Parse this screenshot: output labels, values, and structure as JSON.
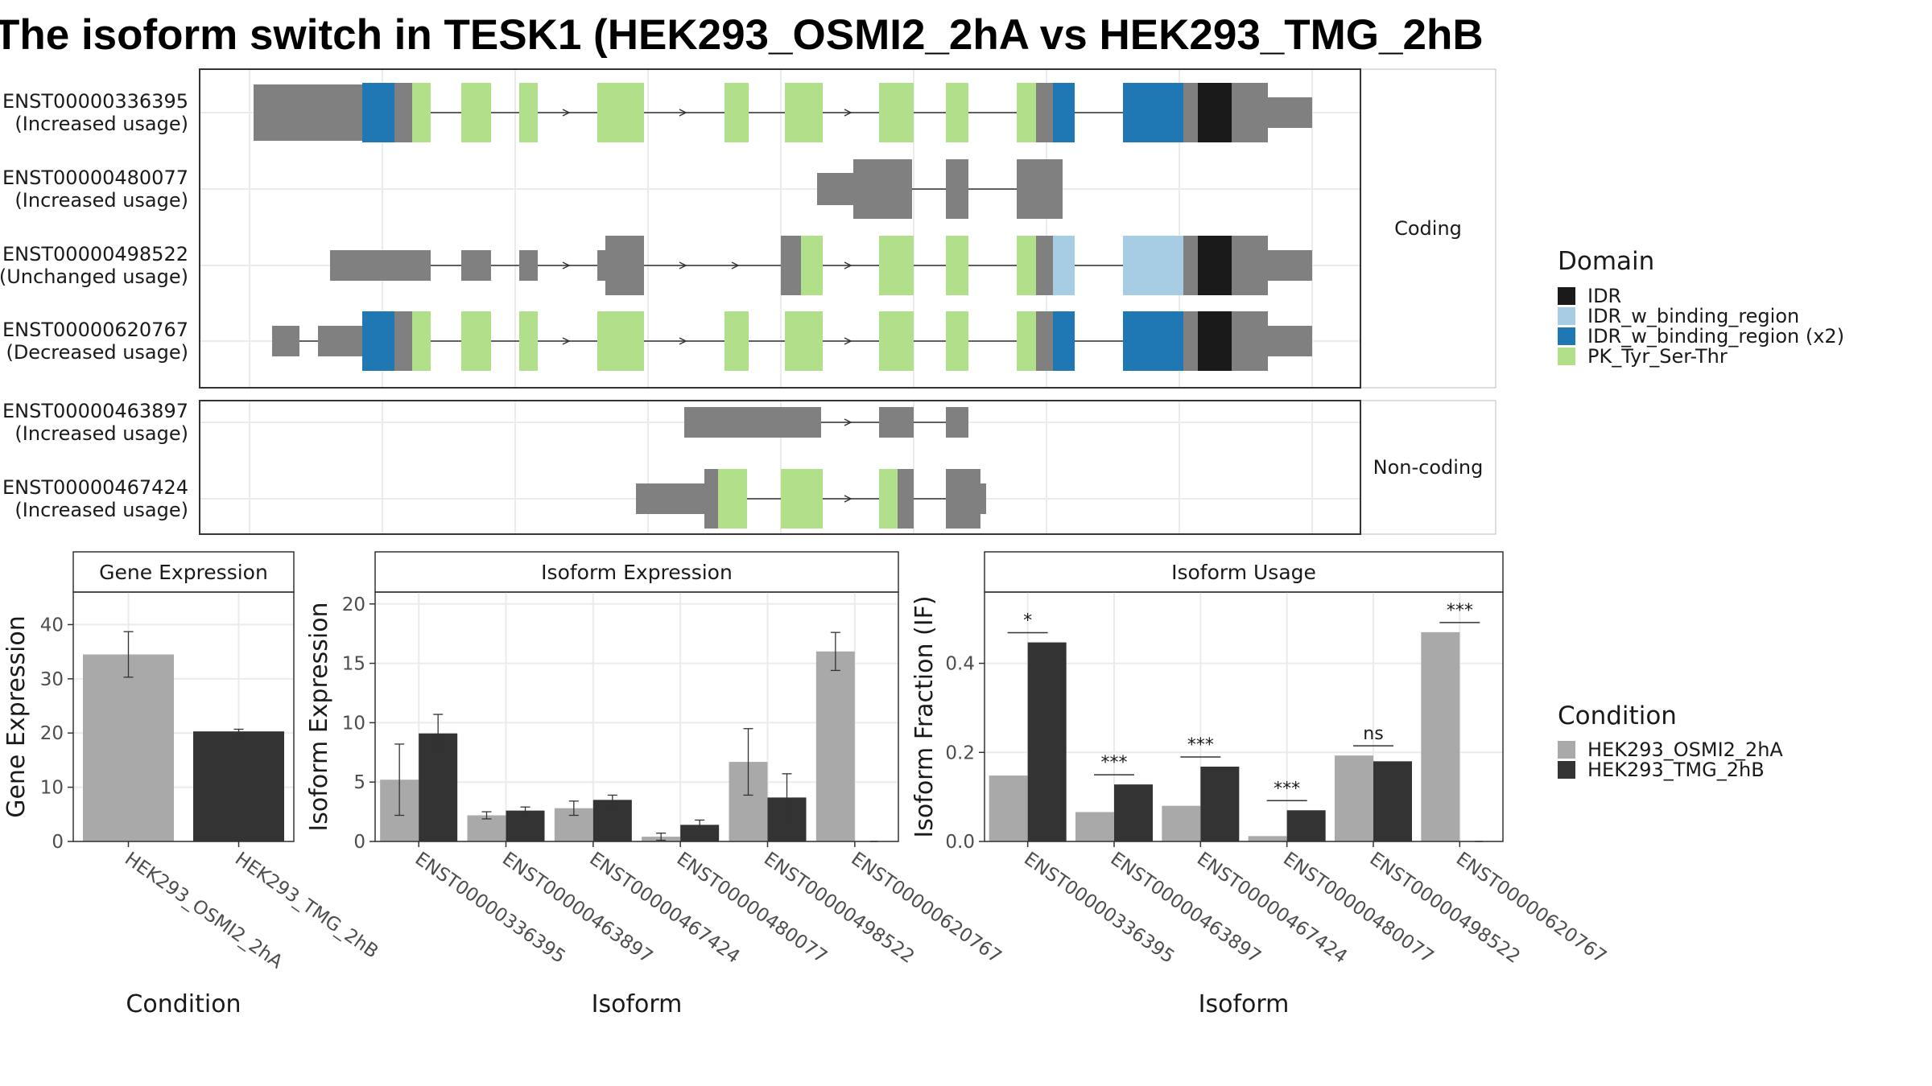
{
  "title": "The isoform switch in TESK1 (HEK293_OSMI2_2hA vs HEK293_TMG_2hB",
  "colors": {
    "gray_exon": "#808080",
    "IDR": "#1a1a1a",
    "IDR_w_binding_region": "#a6cde3",
    "IDR_w_binding_region (x2)": "#1f78b4",
    "PK_Tyr_Ser-Thr": "#b2df8a",
    "cond1": "#a9a9a9",
    "cond2": "#333333"
  },
  "chart_data": [
    {
      "type": "gene-structure",
      "facets": [
        "Coding",
        "Non-coding"
      ],
      "transcripts": [
        {
          "id": "ENST00000336395",
          "usage": "(Increased usage)",
          "facet": "Coding"
        },
        {
          "id": "ENST00000480077",
          "usage": "(Increased usage)",
          "facet": "Coding"
        },
        {
          "id": "ENST00000498522",
          "usage": "(Unchanged usage)",
          "facet": "Coding"
        },
        {
          "id": "ENST00000620767",
          "usage": "(Decreased usage)",
          "facet": "Coding"
        },
        {
          "id": "ENST00000463897",
          "usage": "(Increased usage)",
          "facet": "Non-coding"
        },
        {
          "id": "ENST00000467424",
          "usage": "(Increased usage)",
          "facet": "Non-coding"
        }
      ],
      "legend": {
        "title": "Domain",
        "items": [
          "IDR",
          "IDR_w_binding_region",
          "IDR_w_binding_region (x2)",
          "PK_Tyr_Ser-Thr"
        ]
      }
    },
    {
      "type": "bar",
      "title": "Gene Expression",
      "xlabel": "Condition",
      "ylabel": "Gene Expression",
      "categories": [
        "HEK293_OSMI2_2hA",
        "HEK293_TMG_2hB"
      ],
      "values": [
        34.5,
        20.3
      ],
      "errors": [
        [
          30.3,
          38.7
        ],
        [
          19.9,
          20.7
        ]
      ],
      "ylim": [
        0,
        46
      ],
      "yticks": [
        0,
        10,
        20,
        30,
        40
      ]
    },
    {
      "type": "bar",
      "title": "Isoform Expression",
      "xlabel": "Isoform",
      "ylabel": "Isoform Expression",
      "categories": [
        "ENST00000336395",
        "ENST00000463897",
        "ENST00000467424",
        "ENST00000480077",
        "ENST00000498522",
        "ENST00000620767"
      ],
      "series": [
        {
          "name": "HEK293_OSMI2_2hA",
          "values": [
            5.2,
            2.2,
            2.8,
            0.4,
            6.7,
            16.0
          ],
          "errors": [
            [
              2.2,
              8.2
            ],
            [
              1.9,
              2.5
            ],
            [
              2.2,
              3.4
            ],
            [
              0.1,
              0.7
            ],
            [
              3.9,
              9.5
            ],
            [
              14.4,
              17.6
            ]
          ]
        },
        {
          "name": "HEK293_TMG_2hB",
          "values": [
            9.1,
            2.6,
            3.5,
            1.4,
            3.7,
            0.0
          ],
          "errors": [
            [
              7.5,
              10.7
            ],
            [
              2.3,
              2.9
            ],
            [
              3.1,
              3.9
            ],
            [
              1.0,
              1.8
            ],
            [
              1.7,
              5.7
            ],
            [
              0.0,
              0.0
            ]
          ]
        }
      ],
      "ylim": [
        0,
        21
      ],
      "yticks": [
        0,
        5,
        10,
        15,
        20
      ]
    },
    {
      "type": "bar",
      "title": "Isoform Usage",
      "xlabel": "Isoform",
      "ylabel": "Isoform Fraction (IF)",
      "categories": [
        "ENST00000336395",
        "ENST00000463897",
        "ENST00000467424",
        "ENST00000480077",
        "ENST00000498522",
        "ENST00000620767"
      ],
      "series": [
        {
          "name": "HEK293_OSMI2_2hA",
          "values": [
            0.148,
            0.066,
            0.08,
            0.012,
            0.193,
            0.47
          ]
        },
        {
          "name": "HEK293_TMG_2hB",
          "values": [
            0.447,
            0.128,
            0.168,
            0.07,
            0.18,
            0.0
          ]
        }
      ],
      "significance": [
        "*",
        "***",
        "***",
        "***",
        "ns",
        "***"
      ],
      "ylim": [
        0,
        0.56
      ],
      "yticks": [
        0.0,
        0.2,
        0.4
      ],
      "ytick_labels": [
        "0.0",
        "0.2",
        "0.4"
      ]
    }
  ],
  "condition_legend": {
    "title": "Condition",
    "items": [
      "HEK293_OSMI2_2hA",
      "HEK293_TMG_2hB"
    ]
  }
}
